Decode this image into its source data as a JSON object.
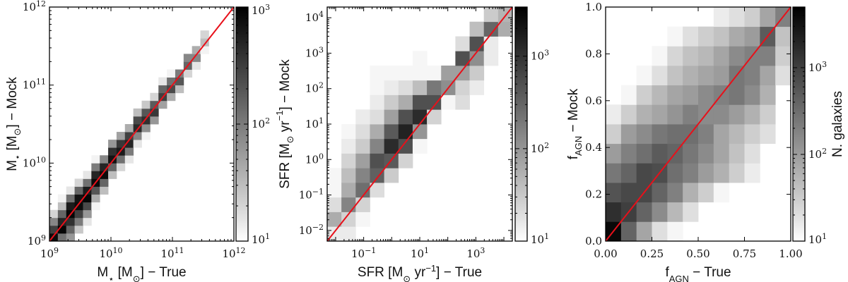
{
  "colors": {
    "diagonal_line": "#e8101a",
    "colormap": "Greys (white to black, log scale)",
    "frame": "#000000"
  },
  "chart_data": [
    {
      "type": "heatmap",
      "xlabel": "M_{⋆} [M_{⊙}] − True",
      "ylabel": "M_{⋆} [M_{⊙}] − Mock",
      "xscale": "log",
      "yscale": "log",
      "xlim": [
        1000000000.0,
        1000000000000.0
      ],
      "ylim": [
        1000000000.0,
        1000000000000.0
      ],
      "x_bins": {
        "n": 22
      },
      "y_bins": {
        "n": 30
      },
      "x_major_ticks": [
        1000000000.0,
        10000000000.0,
        100000000000.0,
        1000000000000.0
      ],
      "x_tick_labels": [
        "10^{9}",
        "10^{10}",
        "10^{11}",
        "10^{12}"
      ],
      "x_tick_label_values": [
        1000000000.0,
        10000000000.0,
        100000000000.0,
        1000000000000.0
      ],
      "y_major_ticks": [
        1000000000.0,
        10000000000.0,
        100000000000.0,
        1000000000000.0
      ],
      "y_tick_labels": [
        "10^{9}",
        "10^{10}",
        "10^{11}",
        "10^{12}"
      ],
      "y_tick_label_values": [
        1000000000.0,
        10000000000.0,
        100000000000.0,
        1000000000000.0
      ],
      "one_to_one_line": true,
      "colorbar": {
        "scale": "log",
        "range": [
          10,
          1000
        ],
        "ticks": [
          10,
          100,
          1000
        ],
        "tick_labels": [
          "10^{1}",
          "10^{2}",
          "10^{3}"
        ],
        "label": ""
      },
      "columns": [
        {
          "x_bin": 0,
          "y_start": 0,
          "counts": [
            800,
            300,
            80,
            20
          ]
        },
        {
          "x_bin": 1,
          "y_start": 0,
          "counts": [
            120,
            900,
            500,
            150,
            30,
            12
          ]
        },
        {
          "x_bin": 2,
          "y_start": 0,
          "counts": [
            60,
            150,
            400,
            900,
            600,
            120,
            15
          ]
        },
        {
          "x_bin": 3,
          "y_start": 1,
          "counts": [
            25,
            100,
            300,
            800,
            700,
            150,
            20
          ]
        },
        {
          "x_bin": 4,
          "y_start": 2,
          "counts": [
            15,
            60,
            250,
            900,
            600,
            120,
            15
          ]
        },
        {
          "x_bin": 5,
          "y_start": 4,
          "counts": [
            12,
            40,
            200,
            850,
            500,
            100,
            12
          ]
        },
        {
          "x_bin": 6,
          "y_start": 5,
          "counts": [
            0,
            30,
            150,
            800,
            500,
            80,
            0
          ]
        },
        {
          "x_bin": 7,
          "y_start": 7,
          "counts": [
            0,
            30,
            150,
            700,
            400,
            60,
            0
          ]
        },
        {
          "x_bin": 8,
          "y_start": 8,
          "counts": [
            0,
            20,
            120,
            600,
            350,
            50,
            0
          ]
        },
        {
          "x_bin": 9,
          "y_start": 9,
          "counts": [
            0,
            15,
            100,
            500,
            300,
            40,
            0
          ]
        },
        {
          "x_bin": 10,
          "y_start": 11,
          "counts": [
            0,
            15,
            80,
            450,
            250,
            30,
            0
          ]
        },
        {
          "x_bin": 11,
          "y_start": 12,
          "counts": [
            0,
            12,
            70,
            400,
            200,
            25,
            0
          ]
        },
        {
          "x_bin": 12,
          "y_start": 13,
          "counts": [
            0,
            0,
            60,
            350,
            180,
            20,
            0
          ]
        },
        {
          "x_bin": 13,
          "y_start": 15,
          "counts": [
            0,
            0,
            50,
            300,
            150,
            15,
            0
          ]
        },
        {
          "x_bin": 14,
          "y_start": 16,
          "counts": [
            0,
            0,
            40,
            250,
            120,
            12,
            0
          ]
        },
        {
          "x_bin": 15,
          "y_start": 17,
          "counts": [
            0,
            0,
            30,
            200,
            100,
            0,
            0
          ]
        },
        {
          "x_bin": 16,
          "y_start": 19,
          "counts": [
            0,
            0,
            20,
            150,
            80,
            0,
            0
          ]
        },
        {
          "x_bin": 17,
          "y_start": 20,
          "counts": [
            0,
            0,
            15,
            80,
            40,
            0,
            0
          ]
        },
        {
          "x_bin": 18,
          "y_start": 22,
          "counts": [
            0,
            0,
            12,
            30,
            20,
            0,
            0
          ]
        }
      ]
    },
    {
      "type": "heatmap",
      "xlabel": "SFR [M_{⊙} yr^{−1}] − True",
      "ylabel": "SFR [M_{⊙} yr^{−1}] − Mock",
      "xscale": "log",
      "yscale": "log",
      "xlim": [
        0.005,
        20000
      ],
      "ylim": [
        0.005,
        20000
      ],
      "x_bins": {
        "n": 13
      },
      "y_bins": {
        "n": 16
      },
      "x_major_ticks": [
        0.01,
        0.1,
        1,
        10,
        100,
        1000,
        10000
      ],
      "x_tick_labels": [
        "10^{−1}",
        "10^{1}",
        "10^{3}"
      ],
      "x_tick_label_values": [
        0.1,
        10,
        1000
      ],
      "y_major_ticks": [
        0.01,
        0.1,
        1,
        10,
        100,
        1000,
        10000
      ],
      "y_tick_labels": [
        "10^{−2}",
        "10^{−1}",
        "10^{0}",
        "10^{1}",
        "10^{2}",
        "10^{3}",
        "10^{4}"
      ],
      "y_tick_label_values": [
        0.01,
        0.1,
        1,
        10,
        100,
        1000,
        10000
      ],
      "one_to_one_line": true,
      "colorbar": {
        "scale": "log",
        "range": [
          10,
          3400
        ],
        "ticks": [
          10,
          100,
          1000
        ],
        "tick_labels": [
          "10^{1}",
          "10^{2}",
          "10^{3}"
        ],
        "label": ""
      },
      "columns": [
        {
          "x_bin": 0,
          "y_start": 0,
          "counts": [
            15,
            60,
            20,
            12,
            12
          ]
        },
        {
          "x_bin": 1,
          "y_start": 0,
          "counts": [
            15,
            25,
            150,
            60,
            40,
            25,
            15,
            12
          ]
        },
        {
          "x_bin": 2,
          "y_start": 1,
          "counts": [
            12,
            25,
            250,
            150,
            80,
            30,
            20,
            15
          ]
        },
        {
          "x_bin": 3,
          "y_start": 3,
          "counts": [
            20,
            350,
            500,
            150,
            60,
            20,
            15,
            12,
            12
          ]
        },
        {
          "x_bin": 4,
          "y_start": 4,
          "counts": [
            30,
            400,
            1200,
            400,
            80,
            30,
            15,
            12
          ]
        },
        {
          "x_bin": 5,
          "y_start": 5,
          "counts": [
            25,
            500,
            1500,
            500,
            60,
            20,
            12
          ]
        },
        {
          "x_bin": 6,
          "y_start": 6,
          "counts": [
            12,
            100,
            1200,
            500,
            40,
            12,
            12
          ]
        },
        {
          "x_bin": 7,
          "y_start": 8,
          "counts": [
            25,
            500,
            200,
            12
          ]
        },
        {
          "x_bin": 8,
          "y_start": 9,
          "counts": [
            12,
            120,
            80
          ]
        },
        {
          "x_bin": 9,
          "y_start": 9,
          "counts": [
            20,
            25,
            80,
            500,
            20
          ]
        },
        {
          "x_bin": 10,
          "y_start": 10,
          "counts": [
            15,
            30,
            120,
            500,
            40
          ]
        },
        {
          "x_bin": 11,
          "y_start": 12,
          "counts": [
            15,
            15,
            300,
            30
          ]
        },
        {
          "x_bin": 12,
          "y_start": 14,
          "counts": [
            60,
            50
          ]
        }
      ]
    },
    {
      "type": "heatmap",
      "xlabel": "f_{AGN} − True",
      "ylabel": "f_{AGN} − Mock",
      "xscale": "linear",
      "yscale": "linear",
      "xlim": [
        0,
        1
      ],
      "ylim": [
        0,
        1
      ],
      "x_bins": {
        "n": 12
      },
      "y_bins": {
        "n": 12
      },
      "x_major_ticks": [
        0,
        0.25,
        0.5,
        0.75,
        1
      ],
      "x_tick_labels": [
        "0.00",
        "0.25",
        "0.50",
        "0.75",
        "1.00"
      ],
      "x_tick_label_values": [
        0,
        0.25,
        0.5,
        0.75,
        1
      ],
      "y_major_ticks": [
        0,
        0.2,
        0.4,
        0.6,
        0.8,
        1
      ],
      "y_tick_labels": [
        "0.0",
        "0.2",
        "0.4",
        "0.6",
        "0.8",
        "1.0"
      ],
      "y_tick_label_values": [
        0,
        0.2,
        0.4,
        0.6,
        0.8,
        1
      ],
      "one_to_one_line": true,
      "colorbar": {
        "scale": "log",
        "range": [
          10,
          5000
        ],
        "ticks": [
          10,
          100,
          1000
        ],
        "tick_labels": [
          "10^{1}",
          "10^{2}",
          "10^{3}"
        ],
        "label": "N. galaxies"
      },
      "rows": [
        {
          "y_bin": 0,
          "x_start": 0,
          "counts": [
            4000,
            400,
            80,
            20,
            12
          ]
        },
        {
          "y_bin": 1,
          "x_start": 0,
          "counts": [
            1500,
            1000,
            400,
            150,
            50,
            20
          ]
        },
        {
          "y_bin": 2,
          "x_start": 0,
          "counts": [
            600,
            800,
            800,
            400,
            200,
            60,
            30,
            12
          ]
        },
        {
          "y_bin": 3,
          "x_start": 0,
          "counts": [
            250,
            400,
            800,
            700,
            300,
            200,
            100,
            60,
            30,
            15
          ]
        },
        {
          "y_bin": 4,
          "x_start": 0,
          "counts": [
            100,
            200,
            300,
            500,
            400,
            250,
            150,
            80,
            40,
            20
          ]
        },
        {
          "y_bin": 5,
          "x_start": 0,
          "counts": [
            30,
            100,
            150,
            250,
            300,
            300,
            200,
            80,
            50,
            30,
            20
          ]
        },
        {
          "y_bin": 6,
          "x_start": 0,
          "counts": [
            15,
            30,
            60,
            80,
            120,
            200,
            150,
            150,
            100,
            60,
            30
          ]
        },
        {
          "y_bin": 7,
          "x_start": 1,
          "counts": [
            12,
            30,
            50,
            80,
            100,
            150,
            200,
            250,
            150,
            60
          ]
        },
        {
          "y_bin": 8,
          "x_start": 2,
          "counts": [
            12,
            20,
            40,
            60,
            80,
            100,
            250,
            200,
            80,
            20
          ]
        },
        {
          "y_bin": 9,
          "x_start": 3,
          "counts": [
            12,
            25,
            40,
            50,
            80,
            150,
            200,
            200,
            30
          ]
        },
        {
          "y_bin": 10,
          "x_start": 4,
          "counts": [
            12,
            20,
            30,
            40,
            70,
            100,
            500,
            40
          ]
        },
        {
          "y_bin": 11,
          "x_start": 7,
          "counts": [
            15,
            20,
            30,
            80,
            200
          ]
        }
      ]
    }
  ]
}
